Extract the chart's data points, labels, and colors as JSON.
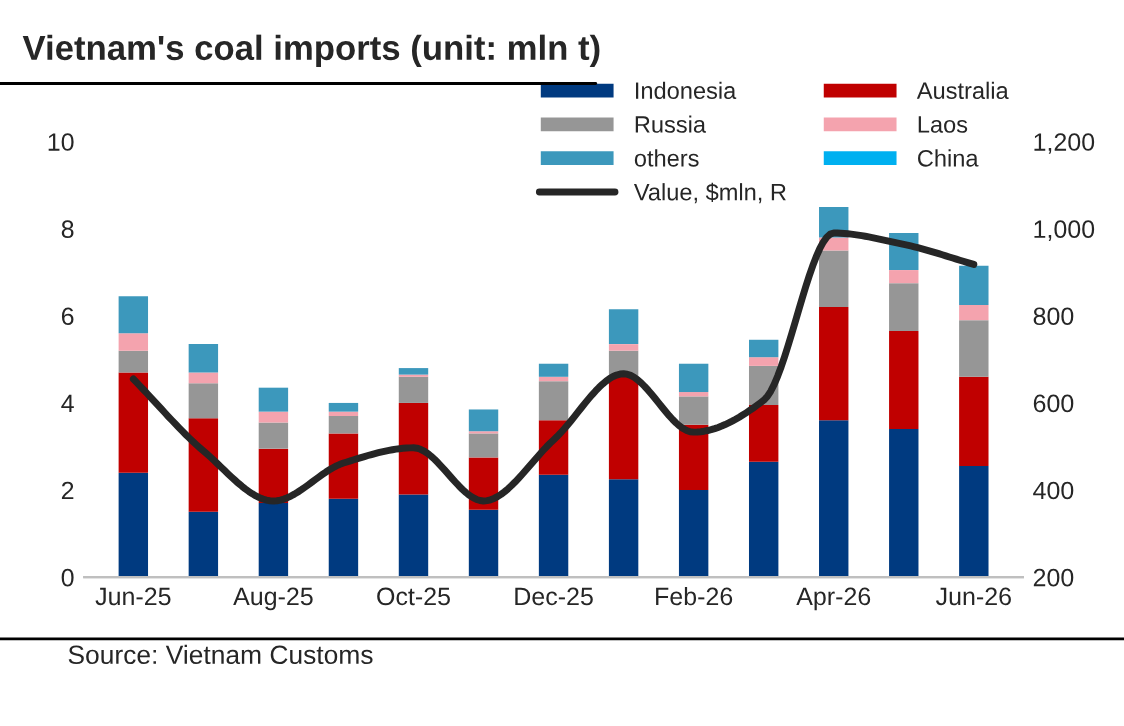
{
  "chart_data": {
    "type": "bar",
    "stacked": true,
    "title": "Vietnam's coal imports (unit: mln t)",
    "categories": [
      "Jun-25",
      null,
      "Aug-25",
      null,
      "Oct-25",
      null,
      "Dec-25",
      null,
      "Feb-26",
      null,
      "Apr-26",
      null,
      "Jun-26"
    ],
    "series": [
      {
        "name": "Indonesia",
        "color": "#003a80",
        "values": [
          2.4,
          1.5,
          1.7,
          1.8,
          1.9,
          1.55,
          2.35,
          2.25,
          2.0,
          2.65,
          3.6,
          3.4,
          2.55
        ]
      },
      {
        "name": "Australia",
        "color": "#c00000",
        "values": [
          2.3,
          2.15,
          1.25,
          1.5,
          2.1,
          1.2,
          1.25,
          2.35,
          1.5,
          1.3,
          2.6,
          2.25,
          2.05
        ]
      },
      {
        "name": "Russia",
        "color": "#969696",
        "values": [
          0.5,
          0.8,
          0.6,
          0.4,
          0.6,
          0.55,
          0.9,
          0.6,
          0.65,
          0.9,
          1.3,
          1.1,
          1.3
        ]
      },
      {
        "name": "Laos",
        "color": "#f4a3ae",
        "values": [
          0.4,
          0.25,
          0.25,
          0.1,
          0.05,
          0.05,
          0.1,
          0.15,
          0.1,
          0.2,
          0.3,
          0.3,
          0.35
        ]
      },
      {
        "name": "others",
        "color": "#3c98bc",
        "values": [
          0.85,
          0.65,
          0.55,
          0.2,
          0.15,
          0.5,
          0.3,
          0.8,
          0.65,
          0.4,
          0.7,
          0.85,
          0.9
        ]
      },
      {
        "name": "China",
        "color": "#00b0f0",
        "values": [
          0,
          0,
          0,
          0,
          0,
          0,
          0,
          0,
          0,
          0,
          0,
          0,
          0
        ]
      },
      {
        "name": "Value, $mln, R",
        "type": "line",
        "axis": "y2",
        "color": "#262626",
        "values": [
          655,
          490,
          375,
          462,
          497,
          375,
          515,
          667,
          533,
          606,
          990,
          964,
          918
        ]
      }
    ],
    "ylim": [
      0,
      10
    ],
    "yticks": [
      0,
      2,
      4,
      6,
      8,
      10
    ],
    "y2lim": [
      200,
      1200
    ],
    "y2ticks": [
      200,
      400,
      600,
      800,
      {
        "value": 1000,
        "label": "1,000"
      },
      {
        "value": 1200,
        "label": "1,200"
      }
    ],
    "legend": "top right",
    "grid": false,
    "marker": "none",
    "line_style": "solid",
    "annotations": [
      "Source: Vietnam Customs"
    ]
  }
}
